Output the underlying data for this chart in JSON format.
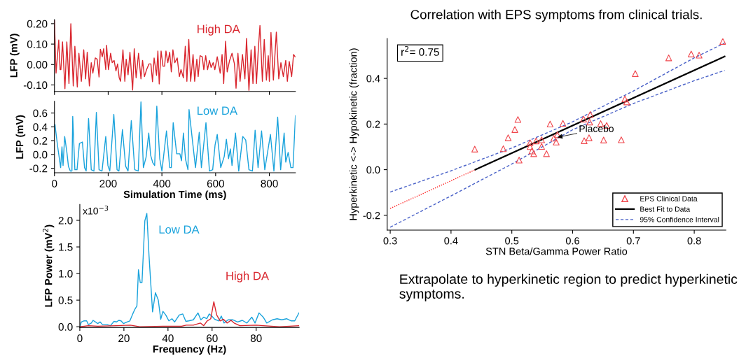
{
  "chart_data": [
    {
      "type": "line",
      "ylabel": "LFP (mV)",
      "xlim": [
        0,
        897
      ],
      "ylim": [
        -0.132,
        0.22
      ],
      "xticks": [
        0,
        200,
        400,
        600,
        800
      ],
      "yticks": [
        {
          "value": -0.1,
          "label": "-0.10"
        },
        {
          "value": 0,
          "label": "0.00"
        },
        {
          "value": 0.1,
          "label": "0.10"
        },
        {
          "value": 0.2,
          "label": "0.20"
        }
      ],
      "tick_labels": "y",
      "legend": false,
      "series": [
        {
          "name": "High DA",
          "color": "#d9262e",
          "x": [
            0,
            6,
            16,
            21,
            24,
            30,
            39,
            46,
            54,
            61,
            70,
            76,
            85,
            91,
            100,
            109,
            116,
            122,
            130,
            137,
            143,
            152,
            159,
            166,
            171,
            178,
            183,
            191,
            194,
            201,
            209,
            215,
            222,
            229,
            235,
            241,
            246,
            255,
            262,
            267,
            274,
            281,
            291,
            297,
            304,
            313,
            322,
            328,
            335,
            343,
            352,
            359,
            365,
            371,
            380,
            385,
            390,
            397,
            404,
            410,
            415,
            422,
            429,
            435,
            441,
            448,
            457,
            465,
            471,
            480,
            487,
            493,
            500,
            507,
            516,
            522,
            530,
            535,
            542,
            550,
            556,
            563,
            570,
            577,
            583,
            591,
            597,
            606,
            617,
            624,
            630,
            637,
            643,
            652,
            661,
            670,
            676,
            683,
            691,
            700,
            709,
            715,
            724,
            732,
            739,
            746,
            752,
            759,
            765,
            774,
            781,
            789,
            796,
            800,
            806,
            815,
            826,
            835,
            843,
            852,
            861,
            867,
            874,
            883,
            890,
            896
          ],
          "values": [
            0.214,
            -0.042,
            0.12,
            -0.025,
            -0.025,
            0.111,
            -0.118,
            0.111,
            -0.093,
            0.2,
            -0.105,
            0.089,
            -0.11,
            0.055,
            -0.082,
            0.072,
            -0.07,
            0.06,
            -0.105,
            0.009,
            -0.042,
            0.032,
            0.026,
            -0.061,
            0.075,
            0.038,
            0.077,
            -0.025,
            0.094,
            -0.025,
            0.055,
            0.009,
            0.02,
            -0.031,
            0.003,
            -0.065,
            -0.082,
            0.072,
            -0.082,
            0.026,
            -0.05,
            0.06,
            -0.125,
            0.077,
            -0.065,
            0.055,
            -0.07,
            0.02,
            -0.059,
            -0.025,
            0.003,
            0.003,
            -0.084,
            0.032,
            -0.053,
            0.066,
            -0.095,
            0.066,
            -0.008,
            -0.008,
            0.066,
            0.009,
            0.06,
            -0.036,
            0.072,
            0.009,
            0.032,
            -0.059,
            -0.025,
            -0.065,
            0.089,
            -0.082,
            0.123,
            -0.082,
            0.049,
            -0.082,
            0.026,
            -0.059,
            0.043,
            0.038,
            -0.025,
            0.043,
            -0.025,
            0.02,
            -0.014,
            0.009,
            -0.025,
            0.038,
            -0.042,
            0.049,
            -0.093,
            0.114,
            -0.036,
            0.02,
            0.055,
            0.003,
            -0.116,
            0.055,
            -0.082,
            0.049,
            -0.07,
            0.128,
            -0.127,
            0.072,
            -0.093,
            0.089,
            -0.093,
            0.077,
            0.191,
            -0.082,
            0.123,
            -0.076,
            0.043,
            -0.082,
            0.157,
            -0.076,
            0.159,
            -0.07,
            0.009,
            -0.059,
            0.02,
            -0.082,
            0.015,
            -0.059,
            0.049,
            0.038
          ]
        }
      ]
    },
    {
      "type": "line",
      "xlabel": "Simulation Time (ms)",
      "ylabel": "LFP (mV)",
      "xlim": [
        0,
        897
      ],
      "ylim": [
        -0.265,
        0.77
      ],
      "xticks": [
        0,
        200,
        400,
        600,
        800
      ],
      "yticks": [
        -0.2,
        {
          "value": 0,
          "label": "0.0"
        },
        0.2,
        0.4,
        0.6
      ],
      "legend": false,
      "series": [
        {
          "name": "Low DA",
          "color": "#1aa3dc",
          "x": [
            2,
            11,
            23,
            28,
            32,
            38,
            46,
            52,
            59,
            65,
            68,
            76,
            84,
            93,
            104,
            112,
            118,
            127,
            137,
            147,
            156,
            166,
            177,
            191,
            199,
            206,
            221,
            233,
            240,
            253,
            265,
            274,
            286,
            299,
            312,
            322,
            331,
            341,
            351,
            358,
            366,
            373,
            381,
            392,
            400,
            417,
            429,
            435,
            442,
            455,
            467,
            473,
            480,
            488,
            497,
            501,
            514,
            525,
            539,
            547,
            564,
            577,
            589,
            598,
            606,
            619,
            632,
            640,
            648,
            655,
            661,
            674,
            686,
            701,
            712,
            724,
            737,
            747,
            758,
            771,
            783,
            804,
            817,
            831,
            842,
            855,
            861,
            870,
            880,
            888,
            897
          ],
          "values": [
            0.43,
            0.14,
            -0.19,
            0.11,
            -0.16,
            0.26,
            0.04,
            -0.17,
            -0.24,
            -0.24,
            0.55,
            -0.22,
            -0.22,
            0.16,
            0.18,
            -0.19,
            -0.24,
            0.52,
            -0.22,
            -0.24,
            0.61,
            -0.22,
            -0.24,
            0.26,
            -0.16,
            -0.24,
            0.58,
            -0.22,
            -0.24,
            0.36,
            -0.17,
            -0.24,
            0.49,
            -0.22,
            -0.24,
            0.76,
            -0.19,
            -0.04,
            0.31,
            -0.01,
            -0.12,
            -0.16,
            0.7,
            -0.06,
            -0.24,
            0.34,
            -0.19,
            -0.19,
            0.46,
            0.01,
            0.01,
            -0.09,
            0.31,
            -0.07,
            -0.22,
            0.65,
            0.19,
            -0.19,
            0.32,
            -0.19,
            0.46,
            -0.24,
            -0.22,
            0.14,
            0.29,
            -0.19,
            -0.03,
            0.22,
            -0.06,
            0.08,
            -0.16,
            0.31,
            -0.24,
            0.26,
            0.21,
            -0.22,
            -0.24,
            0.35,
            -0.19,
            0.34,
            -0.22,
            0.29,
            -0.24,
            0.54,
            -0.22,
            0.31,
            -0.11,
            0.03,
            -0.19,
            -0.19,
            0.56
          ]
        }
      ]
    },
    {
      "type": "line",
      "xlabel": "Frequency (Hz)",
      "ylabel": "LFP Power (mV$^{2}$)",
      "xlim": [
        0,
        99.5
      ],
      "ylim": [
        -0.013,
        2.3
      ],
      "xticks": [
        0,
        20,
        40,
        60,
        80
      ],
      "yticks": [
        {
          "value": 0,
          "label": "0.0"
        },
        0.5,
        {
          "value": 1,
          "label": "1.0"
        },
        1.5,
        {
          "value": 2,
          "label": "2.0"
        }
      ],
      "legend": false,
      "annotations": [
        "x10$^{−3}$"
      ],
      "series": [
        {
          "name": "Low DA",
          "color": "#1aa3dc",
          "x": [
            0,
            0.7,
            1.8,
            3.1,
            3.9,
            5.2,
            6,
            7.1,
            8.1,
            9.2,
            10.3,
            12.4,
            13.9,
            15.5,
            16.6,
            17.7,
            18.7,
            19.8,
            21.4,
            22.7,
            24,
            25,
            25.9,
            26.6,
            27.4,
            28.2,
            29.5,
            30.4,
            31.4,
            33,
            34.3,
            35.6,
            36.7,
            37.7,
            39,
            40.4,
            41.8,
            43,
            45.1,
            46.7,
            48.1,
            49.4,
            51.5,
            53.6,
            54.9,
            56.2,
            57.6,
            58.7,
            59.9,
            61.2,
            63.1,
            64.2,
            65.4,
            67.3,
            69.5,
            71.6,
            73.7,
            75.8,
            78,
            79.5,
            81.3,
            83.2,
            84.8,
            87.4,
            89.5,
            91.6,
            93.8,
            95.9,
            97.5,
            99.4
          ],
          "values": [
            0,
            0.09,
            0.11,
            0.11,
            0.04,
            0.07,
            0.12,
            0.09,
            0.06,
            0.09,
            0.04,
            0.04,
            0.02,
            0.1,
            0.09,
            0.12,
            0.11,
            0.06,
            0.09,
            0.11,
            0.24,
            0.33,
            0.39,
            1.07,
            0.83,
            0.83,
            1.99,
            2.13,
            1.33,
            0.28,
            0.64,
            0.5,
            0.14,
            0.29,
            0.22,
            0.11,
            0.15,
            0.09,
            0.22,
            0.24,
            0.1,
            0.11,
            0.13,
            0.26,
            0.13,
            0.18,
            0.15,
            0.24,
            0.2,
            0.14,
            0.11,
            0.2,
            0.07,
            0.13,
            0.13,
            0.09,
            0.12,
            0.07,
            0.18,
            0.07,
            0.26,
            0.18,
            0.07,
            0.13,
            0.15,
            0.13,
            0.15,
            0.11,
            0.11,
            0.26
          ]
        },
        {
          "name": "High DA",
          "color": "#d9262e",
          "x": [
            0,
            3.9,
            8.1,
            16.6,
            22.9,
            27.2,
            37.7,
            46.2,
            48.3,
            51.5,
            54.7,
            56.2,
            57.8,
            59.4,
            60.8,
            62.1,
            63.6,
            65.2,
            66.8,
            68.6,
            70,
            72.6,
            80,
            83.2,
            90.6,
            99.4
          ],
          "values": [
            0,
            0.02,
            0.01,
            0.02,
            0.03,
            0,
            0.01,
            0.01,
            0.03,
            0.03,
            0.07,
            0.02,
            0.11,
            0.15,
            0.47,
            0.22,
            0.11,
            0.14,
            0.07,
            0.12,
            0.07,
            0.02,
            0.03,
            0.02,
            0,
            0.02
          ]
        }
      ]
    },
    {
      "type": "scatter",
      "title": "Correlation with EPS symptoms from clinical trials.",
      "xlabel": "STN Beta/Gamma Power Ratio",
      "ylabel": "Hyperkinetic <-> Hypokinetic (fraction)",
      "xlim": [
        0.295,
        0.852
      ],
      "ylim": [
        -0.265,
        0.575
      ],
      "xticks": [
        0.3,
        0.4,
        0.5,
        0.6,
        0.7,
        0.8
      ],
      "yticks": [
        -0.2,
        {
          "value": 0,
          "label": "0.0"
        },
        0.2,
        0.4
      ],
      "legend": "bottom right",
      "annotations": [
        "r$^{2}$= 0.75",
        "Extrapolate to hyperkinetic region to predict hyperkinetic symptoms.",
        {
          "text": "Placebo",
          "x": 0.575,
          "y": 0.142
        }
      ],
      "series": [
        {
          "type": "scatter",
          "marker": "triangle",
          "name": "EPS Clinical Data",
          "color": "#f0484e",
          "x": [
            0.439,
            0.486,
            0.494,
            0.505,
            0.51,
            0.512,
            0.53,
            0.53,
            0.533,
            0.536,
            0.54,
            0.549,
            0.549,
            0.557,
            0.563,
            0.569,
            0.573,
            0.575,
            0.584,
            0.618,
            0.619,
            0.627,
            0.628,
            0.629,
            0.646,
            0.651,
            0.656,
            0.68,
            0.686,
            0.689,
            0.703,
            0.758,
            0.795,
            0.808,
            0.847
          ],
          "values": [
            0.09,
            0.092,
            0.14,
            0.176,
            0.22,
            0.042,
            0.118,
            0.101,
            0.082,
            0.07,
            0.126,
            0.131,
            0.102,
            0.07,
            0.2,
            0.138,
            0.121,
            0.153,
            0.203,
            0.222,
            0.127,
            0.14,
            0.209,
            0.242,
            0.202,
            0.13,
            0.194,
            0.131,
            0.31,
            0.297,
            0.421,
            0.49,
            0.507,
            0.502,
            0.562
          ]
        },
        {
          "type": "line",
          "color": "#ff2020",
          "line_style": "dotted",
          "x": [
            0.3,
            0.44
          ],
          "values": [
            -0.17,
            0
          ]
        },
        {
          "type": "line",
          "name": "Best Fit to Data",
          "color": "#000000",
          "line_style": "solid",
          "x": [
            0.44,
            0.85
          ],
          "values": [
            0,
            0.496
          ]
        },
        {
          "type": "line",
          "name": "95% Confidence Interval",
          "color": "#4a62c8",
          "line_style": "dashed",
          "x": [
            0.3,
            0.4,
            0.5,
            0.6,
            0.7,
            0.8,
            0.85
          ],
          "values": [
            -0.098,
            -0.005,
            0.095,
            0.21,
            0.345,
            0.49,
            0.555
          ]
        },
        {
          "type": "line",
          "color": "#4a62c8",
          "line_style": "dashed",
          "x": [
            0.3,
            0.4,
            0.5,
            0.6,
            0.7,
            0.8,
            0.85
          ],
          "values": [
            -0.252,
            -0.115,
            0.025,
            0.175,
            0.29,
            0.39,
            0.435
          ]
        }
      ]
    }
  ]
}
